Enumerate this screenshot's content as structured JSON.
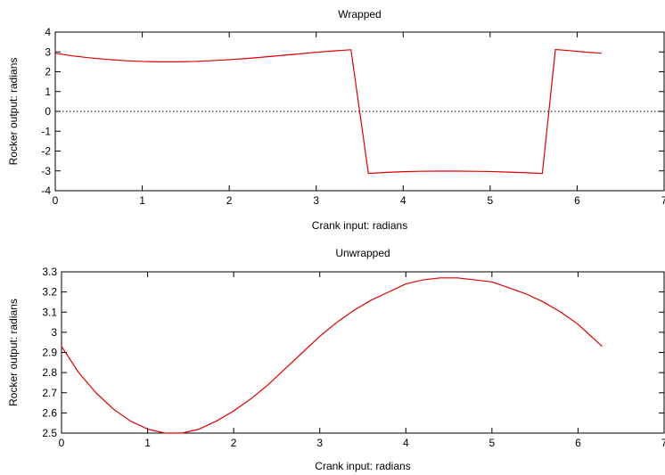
{
  "chart_data": [
    {
      "type": "line",
      "title": "Wrapped",
      "xlabel": "Crank input: radians",
      "ylabel": "Rocker output: radians",
      "xlim": [
        0,
        7
      ],
      "ylim": [
        -4,
        4
      ],
      "xticks": [
        0,
        1,
        2,
        3,
        4,
        5,
        6,
        7
      ],
      "yticks": [
        -4,
        -3,
        -2,
        -1,
        0,
        1,
        2,
        3,
        4
      ],
      "zero_line": true,
      "grid": false,
      "color": "#e00000",
      "series": [
        {
          "x": [
            0,
            0.2,
            0.4,
            0.6,
            0.8,
            1.0,
            1.2,
            1.4,
            1.6,
            1.8,
            2.0,
            2.2,
            2.4,
            2.6,
            2.8,
            3.0,
            3.2,
            3.4,
            3.6,
            3.8,
            4.0,
            4.2,
            4.4,
            4.6,
            4.8,
            5.0,
            5.2,
            5.4,
            5.6,
            5.75,
            5.9,
            6.1,
            6.28
          ],
          "y": [
            2.93,
            2.8,
            2.7,
            2.62,
            2.56,
            2.52,
            2.5,
            2.5,
            2.52,
            2.56,
            2.61,
            2.67,
            2.74,
            2.82,
            2.9,
            2.98,
            3.05,
            3.11,
            -3.13,
            -3.08,
            -3.04,
            -3.02,
            -3.01,
            -3.01,
            -3.02,
            -3.03,
            -3.06,
            -3.09,
            -3.13,
            3.12,
            3.07,
            2.99,
            2.93
          ]
        }
      ]
    },
    {
      "type": "line",
      "title": "Unwrapped",
      "xlabel": "Crank input: radians",
      "ylabel": "Rocker output: radians",
      "xlim": [
        0,
        7
      ],
      "ylim": [
        2.5,
        3.3
      ],
      "xticks": [
        0,
        1,
        2,
        3,
        4,
        5,
        6,
        7
      ],
      "yticks": [
        2.5,
        2.6,
        2.7,
        2.8,
        2.9,
        3,
        3.1,
        3.2,
        3.3
      ],
      "grid": false,
      "color": "#e00000",
      "series": [
        {
          "x": [
            0,
            0.2,
            0.4,
            0.6,
            0.8,
            1.0,
            1.2,
            1.4,
            1.6,
            1.8,
            2.0,
            2.2,
            2.4,
            2.6,
            2.8,
            3.0,
            3.2,
            3.4,
            3.6,
            3.8,
            4.0,
            4.2,
            4.4,
            4.6,
            4.8,
            5.0,
            5.2,
            5.4,
            5.6,
            5.8,
            6.0,
            6.28
          ],
          "y": [
            2.93,
            2.8,
            2.7,
            2.62,
            2.56,
            2.52,
            2.5,
            2.5,
            2.52,
            2.56,
            2.61,
            2.67,
            2.74,
            2.82,
            2.9,
            2.98,
            3.05,
            3.11,
            3.16,
            3.2,
            3.24,
            3.26,
            3.27,
            3.27,
            3.26,
            3.25,
            3.22,
            3.19,
            3.15,
            3.1,
            3.04,
            2.93
          ]
        }
      ]
    }
  ]
}
